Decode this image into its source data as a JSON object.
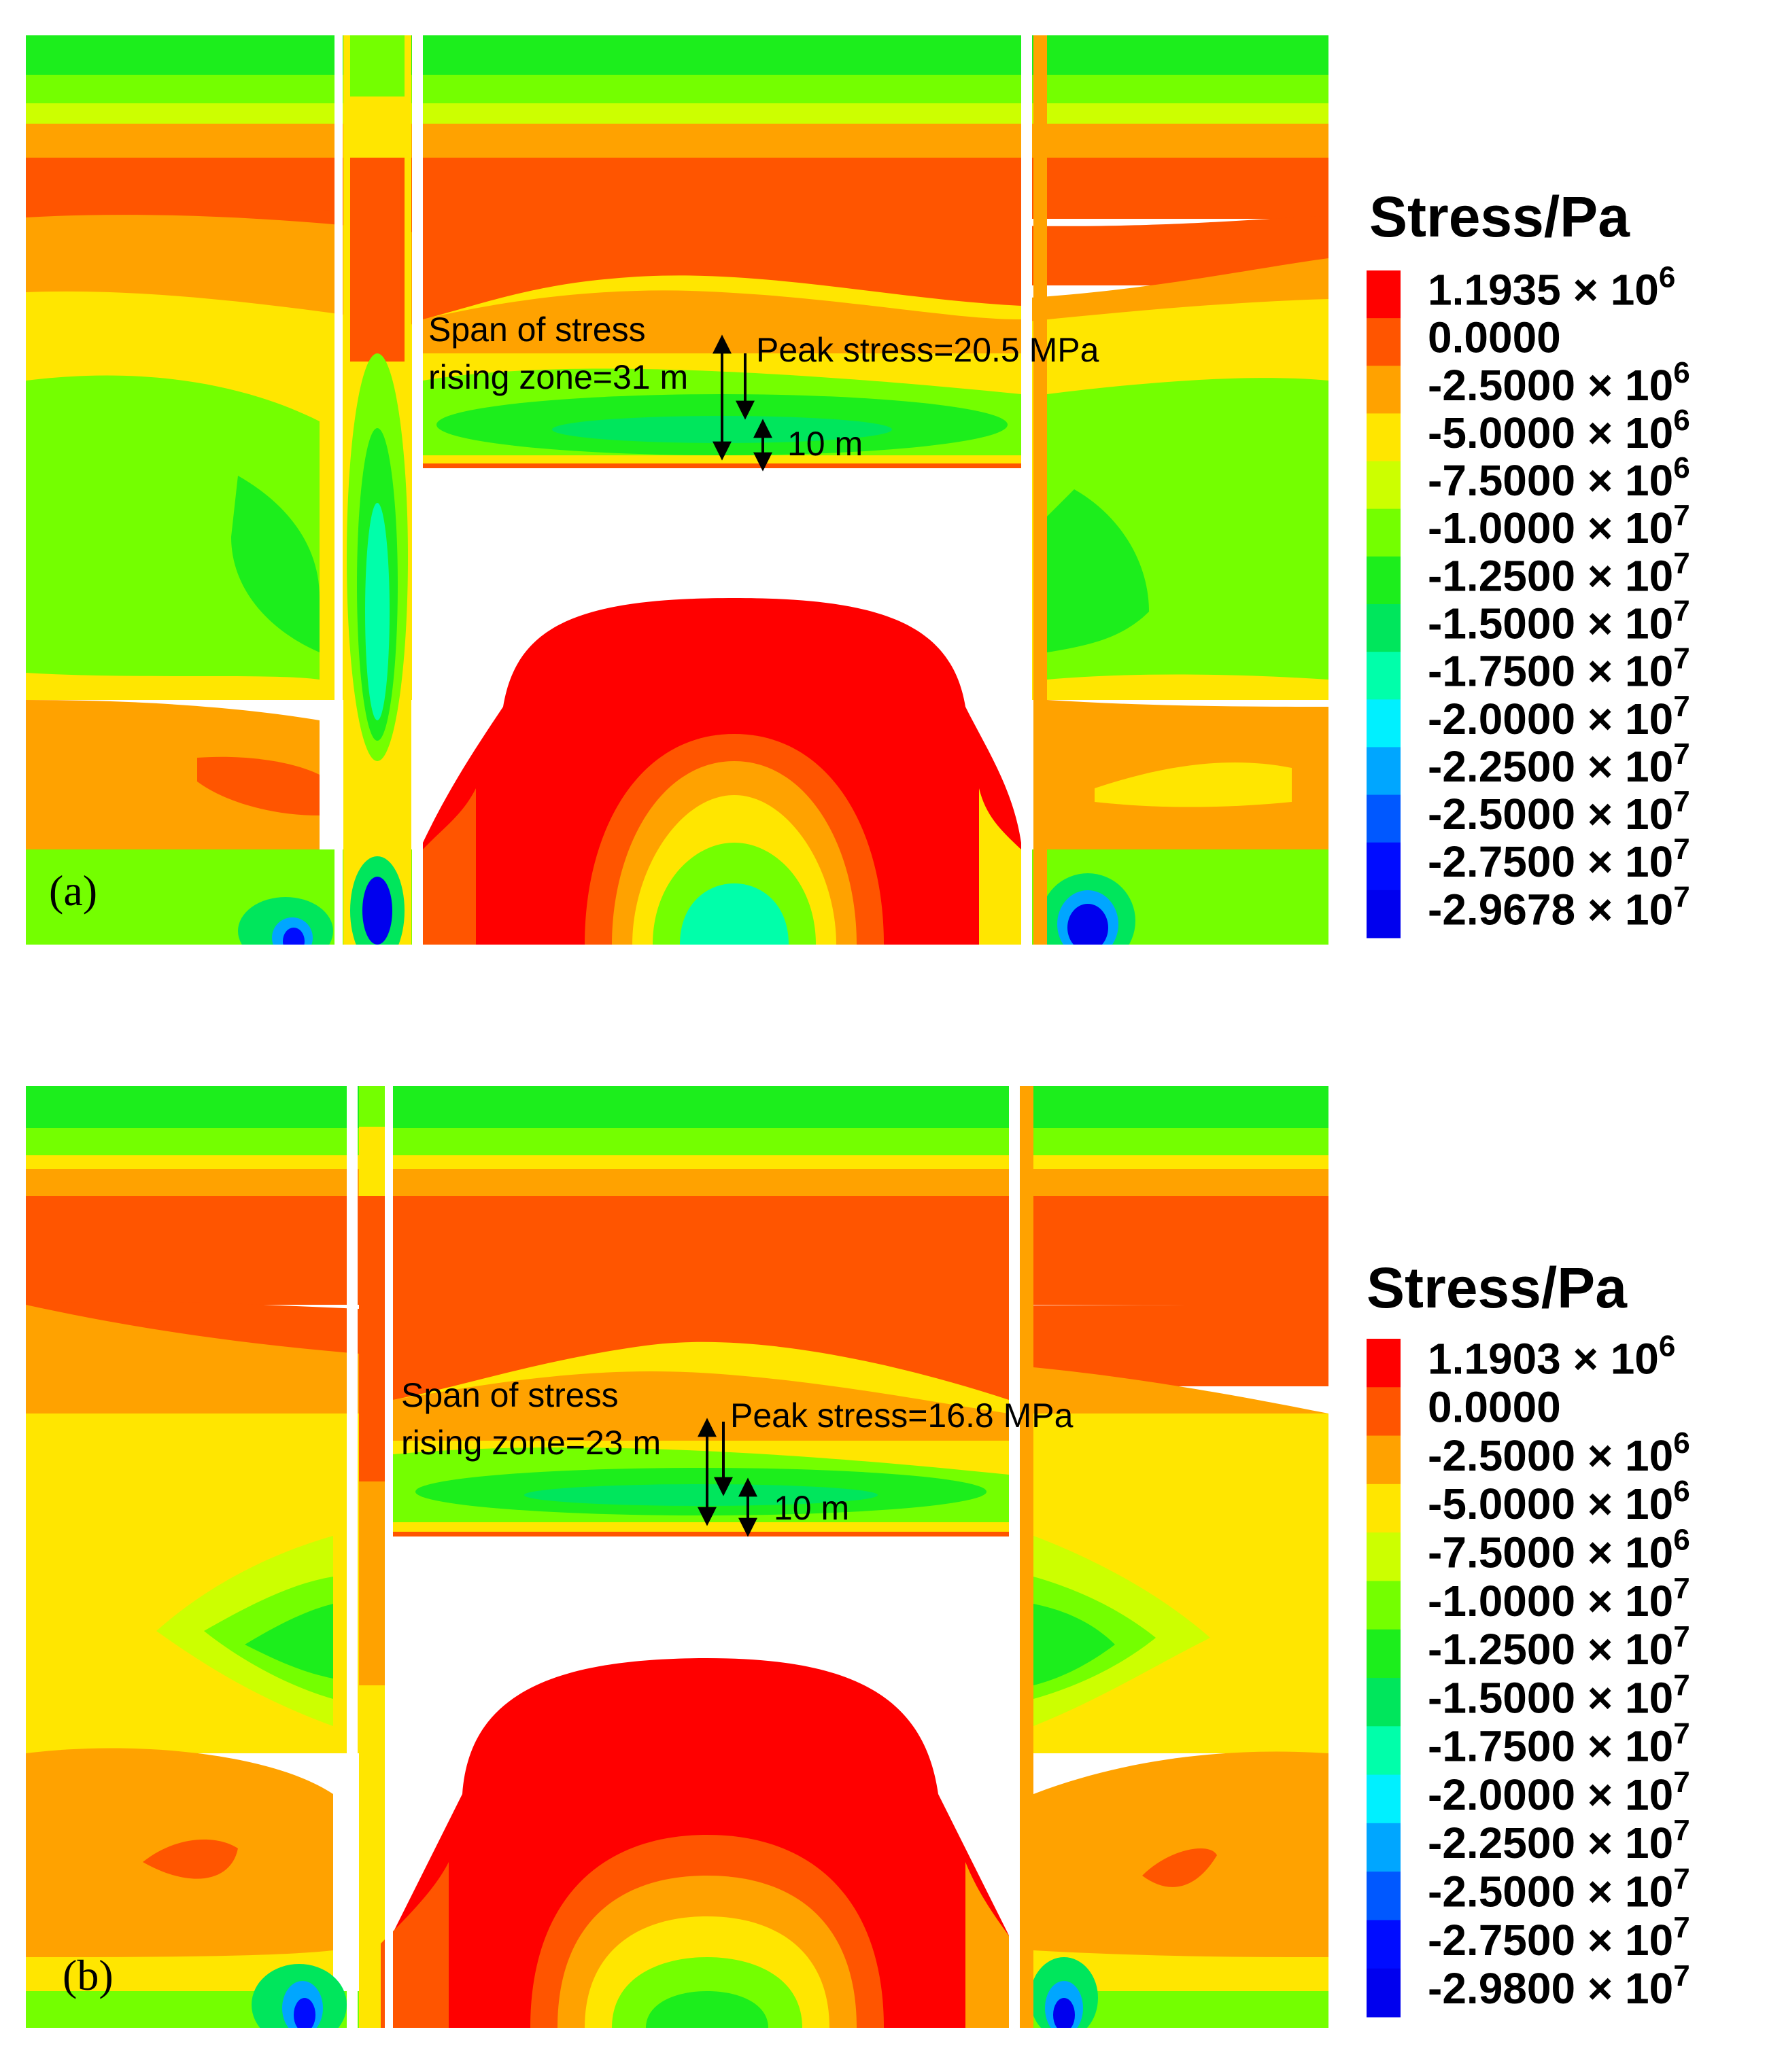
{
  "chart_data": [
    {
      "type": "contour",
      "panel_label": "(a)",
      "legend": {
        "title": "Stress/Pa",
        "entries": [
          {
            "value": "1.1935 × 10",
            "exp": "6",
            "color": "#ff0000"
          },
          {
            "value": "0.0000",
            "exp": "",
            "color": "#ff5500"
          },
          {
            "value": "-2.5000 × 10",
            "exp": "6",
            "color": "#ffa200"
          },
          {
            "value": "-5.0000 × 10",
            "exp": "6",
            "color": "#ffe600"
          },
          {
            "value": "-7.5000 × 10",
            "exp": "6",
            "color": "#ccff00"
          },
          {
            "value": "-1.0000 × 10",
            "exp": "7",
            "color": "#74ff00"
          },
          {
            "value": "-1.2500 × 10",
            "exp": "7",
            "color": "#1cee1c"
          },
          {
            "value": "-1.5000 × 10",
            "exp": "7",
            "color": "#00e65c"
          },
          {
            "value": "-1.7500 × 10",
            "exp": "7",
            "color": "#00ffaa"
          },
          {
            "value": "-2.0000 × 10",
            "exp": "7",
            "color": "#00f0ff"
          },
          {
            "value": "-2.2500 × 10",
            "exp": "7",
            "color": "#00a6ff"
          },
          {
            "value": "-2.5000 × 10",
            "exp": "7",
            "color": "#0058ff"
          },
          {
            "value": "-2.7500 × 10",
            "exp": "7",
            "color": "#000cff"
          },
          {
            "value": "-2.9678 × 10",
            "exp": "7",
            "color": "#0000ee"
          }
        ]
      },
      "annotations": {
        "span_line1": "Span of stress",
        "span_line2": "rising zone=31 m",
        "peak": "Peak stress=20.5 MPa",
        "distance": "10 m"
      },
      "span_m": 31,
      "peak_stress_MPa": 20.5,
      "distance_m": 10
    },
    {
      "type": "contour",
      "panel_label": "(b)",
      "legend": {
        "title": "Stress/Pa",
        "entries": [
          {
            "value": "1.1903 × 10",
            "exp": "6",
            "color": "#ff0000"
          },
          {
            "value": "0.0000",
            "exp": "",
            "color": "#ff5500"
          },
          {
            "value": "-2.5000 × 10",
            "exp": "6",
            "color": "#ffa200"
          },
          {
            "value": "-5.0000 × 10",
            "exp": "6",
            "color": "#ffe600"
          },
          {
            "value": "-7.5000 × 10",
            "exp": "6",
            "color": "#ccff00"
          },
          {
            "value": "-1.0000 × 10",
            "exp": "7",
            "color": "#74ff00"
          },
          {
            "value": "-1.2500 × 10",
            "exp": "7",
            "color": "#1cee1c"
          },
          {
            "value": "-1.5000 × 10",
            "exp": "7",
            "color": "#00e65c"
          },
          {
            "value": "-1.7500 × 10",
            "exp": "7",
            "color": "#00ffaa"
          },
          {
            "value": "-2.0000 × 10",
            "exp": "7",
            "color": "#00f0ff"
          },
          {
            "value": "-2.2500 × 10",
            "exp": "7",
            "color": "#00a6ff"
          },
          {
            "value": "-2.5000 × 10",
            "exp": "7",
            "color": "#0058ff"
          },
          {
            "value": "-2.7500 × 10",
            "exp": "7",
            "color": "#000cff"
          },
          {
            "value": "-2.9800 × 10",
            "exp": "7",
            "color": "#0000ee"
          }
        ]
      },
      "annotations": {
        "span_line1": "Span of stress",
        "span_line2": "rising zone=23 m",
        "peak": "Peak stress=16.8 MPa",
        "distance": "10 m"
      },
      "span_m": 23,
      "peak_stress_MPa": 16.8,
      "distance_m": 10
    }
  ]
}
